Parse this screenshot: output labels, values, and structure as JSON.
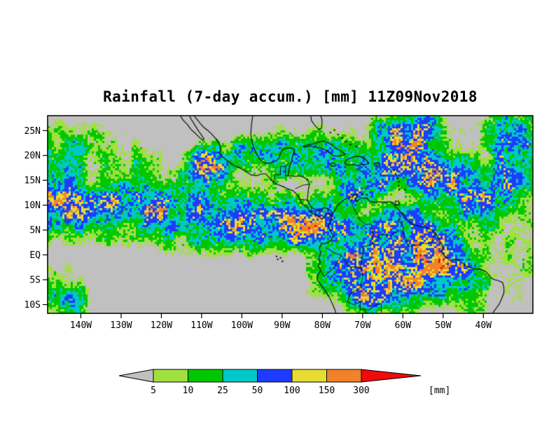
{
  "title": "Rainfall (7-day accum.) [mm] 11Z09Nov2018",
  "colors": {
    "page_background": "#ffffff",
    "map_background": "#c0c0c0",
    "coastline": "#000000",
    "frame": "#000000",
    "text": "#000000"
  },
  "chart_data": {
    "type": "heatmap",
    "title": "Rainfall (7-day accum.) [mm] 11Z09Nov2018",
    "xlabel": "",
    "ylabel": "",
    "x_tick_labels": [
      "140W",
      "130W",
      "120W",
      "110W",
      "100W",
      "90W",
      "80W",
      "70W",
      "60W",
      "50W",
      "40W"
    ],
    "x_tick_lons": [
      -140,
      -130,
      -120,
      -110,
      -100,
      -90,
      -80,
      -70,
      -60,
      -50,
      -40
    ],
    "y_tick_labels": [
      "25N",
      "20N",
      "15N",
      "10N",
      "5N",
      "EQ",
      "5S",
      "10S"
    ],
    "y_tick_lats": [
      25,
      20,
      15,
      10,
      5,
      0,
      -5,
      -10
    ],
    "lon_range_deg": [
      -148.26,
      -27.7
    ],
    "lat_range_deg": [
      -11.76,
      28
    ],
    "grid": false,
    "legend_position": "bottom",
    "colorbar": {
      "levels_mm": [
        5,
        10,
        25,
        50,
        100,
        150,
        300
      ],
      "segment_colors": [
        "#c0c0c0",
        "#a0e040",
        "#00c800",
        "#00c8c8",
        "#1e3cff",
        "#e6dc32",
        "#f08228",
        "#f00a0a"
      ],
      "unit_label": "[mm]"
    },
    "rain_regions": [
      [
        -147,
        13,
        5,
        150
      ],
      [
        -147,
        9,
        4,
        80
      ],
      [
        -141,
        8,
        4,
        60
      ],
      [
        -135,
        9,
        4,
        90
      ],
      [
        -129,
        10,
        4,
        120
      ],
      [
        -122,
        10,
        3.5,
        190
      ],
      [
        -117,
        9,
        4,
        80
      ],
      [
        -112,
        11,
        4,
        90
      ],
      [
        -108,
        17,
        3,
        260
      ],
      [
        -109,
        19.5,
        2.5,
        170
      ],
      [
        -104,
        8,
        4,
        110
      ],
      [
        -99,
        6,
        3.5,
        170
      ],
      [
        -94,
        7,
        4,
        100
      ],
      [
        -89,
        6,
        3.5,
        120
      ],
      [
        -84,
        5,
        3,
        230
      ],
      [
        -79,
        6,
        3.5,
        150
      ],
      [
        -101,
        20,
        3,
        60
      ],
      [
        -95,
        21,
        3,
        50
      ],
      [
        -90,
        20,
        4,
        60
      ],
      [
        -83,
        21,
        3.5,
        70
      ],
      [
        -77,
        19,
        3.5,
        80
      ],
      [
        -73,
        12,
        2.5,
        170
      ],
      [
        -68,
        15,
        4,
        80
      ],
      [
        -63,
        18,
        4,
        100
      ],
      [
        -58,
        21,
        4,
        150
      ],
      [
        -53,
        17,
        4,
        170
      ],
      [
        -47,
        14,
        4,
        140
      ],
      [
        -41,
        11,
        4,
        120
      ],
      [
        -36,
        14,
        4,
        100
      ],
      [
        -32,
        19,
        4,
        110
      ],
      [
        -57,
        25,
        4,
        120
      ],
      [
        -64,
        25,
        3,
        80
      ],
      [
        -33,
        25,
        4,
        90
      ],
      [
        -75,
        4,
        3,
        110
      ],
      [
        -70,
        2,
        4,
        120
      ],
      [
        -65,
        1,
        4,
        100
      ],
      [
        -60,
        0,
        4,
        110
      ],
      [
        -56,
        -2,
        4,
        170
      ],
      [
        -52,
        -4,
        3.5,
        220
      ],
      [
        -49,
        -1,
        3.5,
        170
      ],
      [
        -45,
        -4,
        3.5,
        110
      ],
      [
        -44,
        -8,
        3,
        70
      ],
      [
        -55,
        4,
        3.5,
        120
      ],
      [
        -50,
        2,
        3,
        140
      ],
      [
        -61,
        -6,
        4,
        130
      ],
      [
        -66,
        -5,
        4,
        110
      ],
      [
        -70,
        -8,
        3.5,
        130
      ],
      [
        -74,
        -4,
        3.5,
        90
      ],
      [
        -77,
        -1,
        2.5,
        100
      ],
      [
        -79,
        -4,
        2.5,
        70
      ],
      [
        -147,
        -7,
        4,
        45
      ],
      [
        -142,
        -10,
        3.5,
        40
      ],
      [
        -136,
        21,
        4,
        30
      ],
      [
        -144,
        22,
        4,
        35
      ],
      [
        -126,
        17,
        4,
        30
      ],
      [
        -120,
        4,
        3,
        40
      ],
      [
        -110,
        3,
        3,
        35
      ],
      [
        -63,
        7,
        3,
        70
      ],
      [
        -59,
        7,
        3,
        90
      ]
    ]
  }
}
